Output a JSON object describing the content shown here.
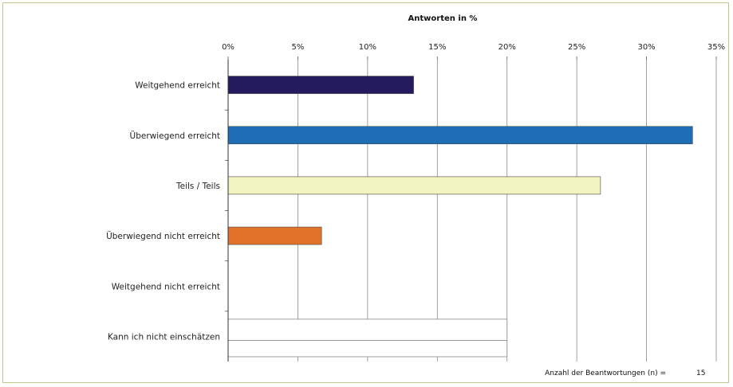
{
  "chart_data": {
    "type": "bar",
    "orientation": "horizontal",
    "title": "Antworten in %",
    "categories": [
      "Weitgehend erreicht",
      "Überwiegend erreicht",
      "Teils / Teils",
      "Überwiegend nicht erreicht",
      "Weitgehend nicht erreicht",
      "Kann ich nicht einschätzen"
    ],
    "values": [
      13.3,
      33.3,
      26.7,
      6.7,
      0,
      0
    ],
    "colors": [
      "#241a5e",
      "#1f6db5",
      "#f3f5c0",
      "#e0722a",
      "#ffffff",
      "#ffffff"
    ],
    "xlim": [
      0,
      35
    ],
    "x_ticks": [
      "0%",
      "5%",
      "10%",
      "15%",
      "20%",
      "25%",
      "30%",
      "35%"
    ],
    "x_axis_position": "top",
    "grid": true,
    "legend": "none",
    "footnote_label": "Anzahl der Beantwortungen (n) =",
    "footnote_value": "15"
  }
}
